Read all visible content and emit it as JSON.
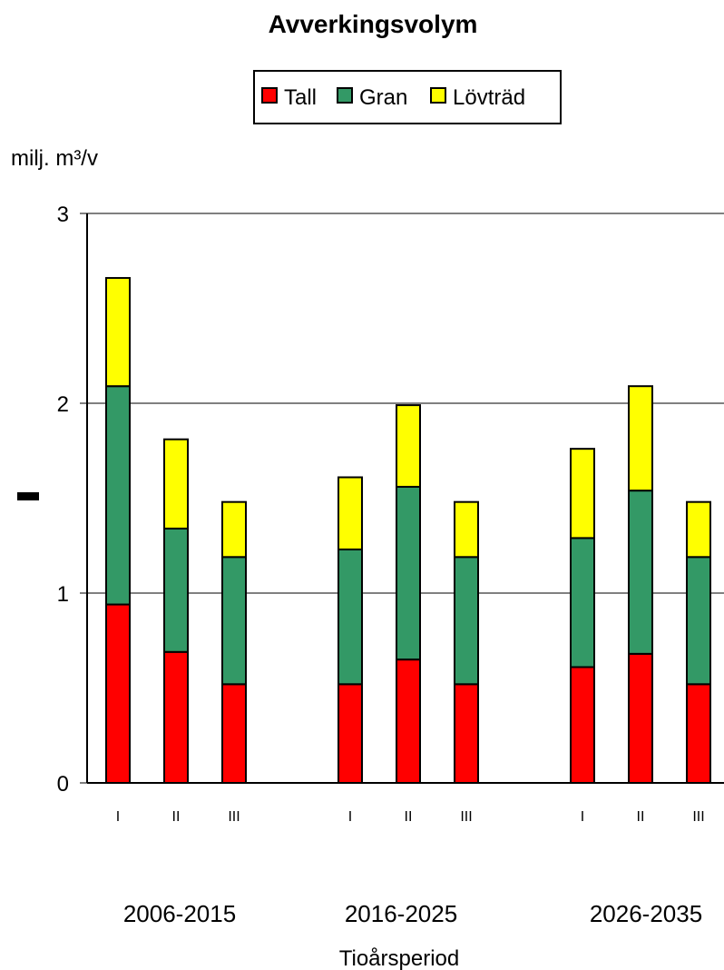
{
  "chart_data": {
    "type": "bar",
    "stacked": true,
    "title": "Avverkingsvolym",
    "ylabel": "milj. m³/v",
    "xlabel": "Tioårsperiod",
    "ylim": [
      0,
      3
    ],
    "yticks": [
      "0",
      "1",
      "2",
      "3"
    ],
    "grid": true,
    "legend_position": "top",
    "groups": [
      "2006-2015",
      "2016-2025",
      "2026-2035"
    ],
    "categories": [
      "I",
      "II",
      "III",
      "I",
      "II",
      "III",
      "I",
      "II",
      "III"
    ],
    "series": [
      {
        "name": "Tall",
        "color": "#ff0000",
        "values": [
          0.94,
          0.69,
          0.52,
          0.52,
          0.65,
          0.52,
          0.61,
          0.68,
          0.52
        ]
      },
      {
        "name": "Gran",
        "color": "#339966",
        "values": [
          1.15,
          0.65,
          0.67,
          0.71,
          0.91,
          0.67,
          0.68,
          0.86,
          0.67
        ]
      },
      {
        "name": "Lövträd",
        "color": "#ffff00",
        "values": [
          0.57,
          0.47,
          0.29,
          0.38,
          0.43,
          0.29,
          0.47,
          0.55,
          0.29
        ]
      }
    ]
  }
}
